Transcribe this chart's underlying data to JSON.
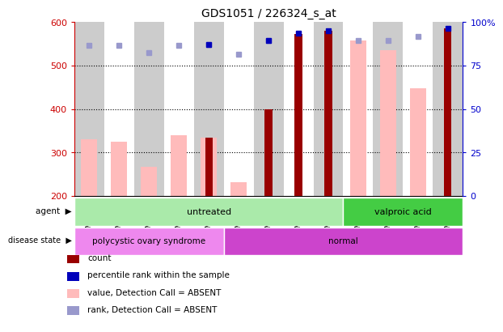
{
  "title": "GDS1051 / 226324_s_at",
  "samples": [
    "GSM29645",
    "GSM29646",
    "GSM29647",
    "GSM29648",
    "GSM29649",
    "GSM29537",
    "GSM29638",
    "GSM29643",
    "GSM29644",
    "GSM29650",
    "GSM29651",
    "GSM29652",
    "GSM29653"
  ],
  "value_absent": [
    330,
    325,
    268,
    340,
    335,
    232,
    null,
    null,
    null,
    557,
    535,
    448,
    null
  ],
  "rank_absent": [
    547,
    547,
    530,
    547,
    548,
    527,
    557,
    null,
    null,
    558,
    558,
    568,
    null
  ],
  "count": [
    null,
    null,
    null,
    null,
    335,
    null,
    400,
    572,
    581,
    null,
    null,
    null,
    585
  ],
  "percentile_rank": [
    null,
    null,
    null,
    null,
    548,
    null,
    557,
    575,
    581,
    null,
    null,
    null,
    585
  ],
  "ylim": [
    200,
    600
  ],
  "yticks_left": [
    200,
    300,
    400,
    500,
    600
  ],
  "yticks_right_pct": [
    0,
    25,
    50,
    75,
    100
  ],
  "agent_groups": [
    {
      "label": "untreated",
      "start": 0,
      "end": 9,
      "color": "#aaeaaa"
    },
    {
      "label": "valproic acid",
      "start": 9,
      "end": 13,
      "color": "#44cc44"
    }
  ],
  "disease_groups": [
    {
      "label": "polycystic ovary syndrome",
      "start": 0,
      "end": 5,
      "color": "#ee88ee"
    },
    {
      "label": "normal",
      "start": 5,
      "end": 13,
      "color": "#cc44cc"
    }
  ],
  "bar_dark_red": "#990000",
  "bar_light_pink": "#ffbbbb",
  "dot_dark_blue": "#0000bb",
  "dot_light_blue": "#9999cc",
  "col_even_bg": "#cccccc",
  "col_odd_bg": "#ffffff",
  "left_axis_color": "#cc0000",
  "right_axis_color": "#0000cc",
  "grid_dotted_color": "black",
  "legend_items": [
    {
      "color": "#990000",
      "label": "count"
    },
    {
      "color": "#0000bb",
      "label": "percentile rank within the sample"
    },
    {
      "color": "#ffbbbb",
      "label": "value, Detection Call = ABSENT"
    },
    {
      "color": "#9999cc",
      "label": "rank, Detection Call = ABSENT"
    }
  ]
}
